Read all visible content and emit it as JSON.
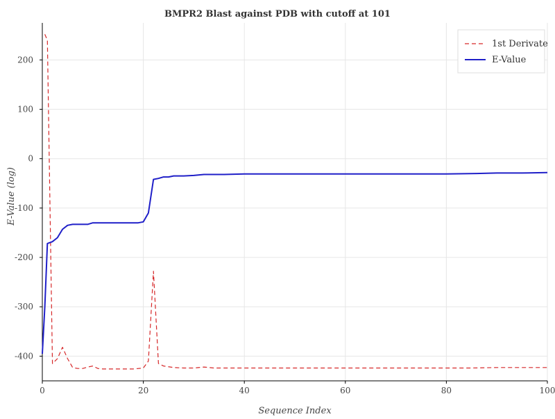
{
  "chart_data": {
    "type": "line",
    "title": "BMPR2 Blast against PDB with cutoff at 101",
    "xlabel": "Sequence Index",
    "ylabel": "E-Value (log)",
    "xlim": [
      0,
      100
    ],
    "ylim": [
      -450,
      275
    ],
    "xticks": [
      0,
      20,
      40,
      60,
      80,
      100
    ],
    "yticks": [
      -400,
      -300,
      -200,
      -100,
      0,
      100,
      200
    ],
    "grid": true,
    "legend_position": "top-right",
    "series": [
      {
        "name": "1st Derivate",
        "color": "#d62728",
        "style": "dashed",
        "x": [
          0.5,
          1,
          2,
          3,
          4,
          5,
          6,
          7,
          8,
          9,
          10,
          11,
          12,
          14,
          16,
          18,
          20,
          21,
          22,
          23,
          24,
          26,
          28,
          30,
          32,
          34,
          36,
          40,
          50,
          60,
          70,
          80,
          85,
          90,
          95,
          100
        ],
        "y": [
          252,
          240,
          -415,
          -405,
          -382,
          -405,
          -423,
          -425,
          -425,
          -422,
          -420,
          -425,
          -426,
          -426,
          -426,
          -426,
          -424,
          -410,
          -228,
          -415,
          -420,
          -423,
          -424,
          -424,
          -422,
          -424,
          -424,
          -424,
          -424,
          -424,
          -424,
          -424,
          -424,
          -423,
          -423,
          -423
        ]
      },
      {
        "name": "E-Value",
        "color": "#1f1fc8",
        "style": "solid",
        "x": [
          0,
          0.5,
          1,
          2,
          3,
          4,
          5,
          6,
          7,
          8,
          9,
          10,
          12,
          14,
          16,
          18,
          19,
          20,
          21,
          22,
          23,
          24,
          25,
          26,
          28,
          30,
          32,
          36,
          40,
          50,
          60,
          70,
          80,
          86,
          90,
          95,
          100
        ],
        "y": [
          -395,
          -300,
          -172,
          -168,
          -160,
          -143,
          -135,
          -133,
          -133,
          -133,
          -133,
          -130,
          -130,
          -130,
          -130,
          -130,
          -130,
          -128,
          -110,
          -42,
          -40,
          -37,
          -37,
          -35,
          -35,
          -34,
          -32,
          -32,
          -31,
          -31,
          -31,
          -31,
          -31,
          -30,
          -29,
          -29,
          -28
        ]
      }
    ]
  }
}
